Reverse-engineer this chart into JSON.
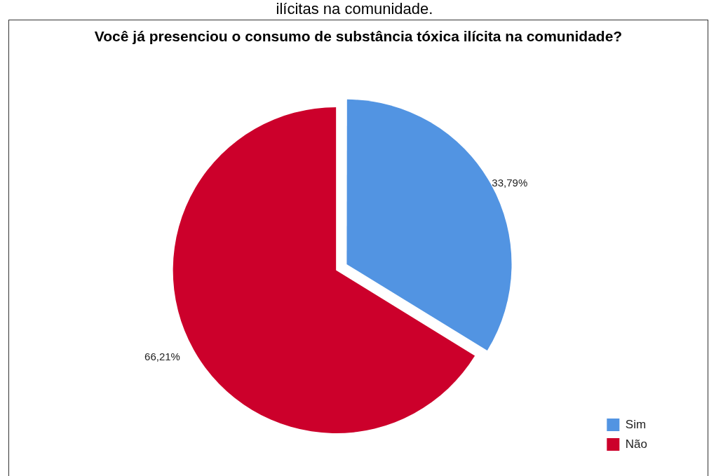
{
  "chart_data": {
    "type": "pie",
    "title": "Você já presenciou o consumo de substância tóxica ilícita na comunidade?",
    "annotations": [
      "ilícitas na comunidade."
    ],
    "categories": [
      "Sim",
      "Não"
    ],
    "values": [
      33.79,
      66.21
    ],
    "value_labels": [
      "33,79%",
      "66,21%"
    ],
    "colors": [
      "#5294e2",
      "#cc002b"
    ],
    "legend": "right"
  }
}
